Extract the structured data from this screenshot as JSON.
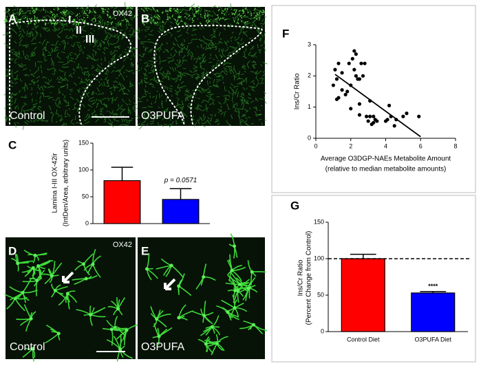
{
  "images": {
    "A": {
      "letter": "A",
      "stain": "OX42",
      "layers": [
        "I",
        "II",
        "III"
      ],
      "condition": "Control"
    },
    "B": {
      "letter": "B",
      "condition": "O3PUFA"
    },
    "D": {
      "letter": "D",
      "stain": "OX42",
      "condition": "Control"
    },
    "E": {
      "letter": "E",
      "condition": "O3PUFA"
    }
  },
  "chart_data": [
    {
      "type": "bar",
      "panel": "C",
      "ylabel": [
        "Lamina I-III OX-42ir",
        "(IntDen/Area, arbitrary units)"
      ],
      "categories": [
        null,
        null
      ],
      "values": [
        80,
        45
      ],
      "errors": [
        25,
        20
      ],
      "colors": [
        "#ff0000",
        "#0000ff"
      ],
      "annotation": "p = 0.0571",
      "ylim": [
        0,
        150
      ],
      "yticks": [
        0,
        50,
        100,
        150
      ]
    },
    {
      "type": "scatter",
      "panel": "F",
      "ylabel": "Ins/Cr Ratio",
      "xlabel": [
        "Average O3DGP-NAEs Metabolite Amount",
        "(relative to median metabolite amounts)"
      ],
      "x": [
        1.0,
        1.1,
        1.2,
        1.3,
        1.3,
        1.2,
        1.5,
        1.5,
        1.7,
        1.8,
        1.9,
        2.0,
        2.0,
        2.1,
        2.2,
        2.3,
        2.2,
        2.3,
        2.4,
        2.5,
        2.6,
        2.5,
        2.7,
        2.8,
        2.5,
        2.9,
        3.0,
        3.1,
        3.2,
        3.3,
        3.3,
        3.4,
        3.5,
        3.1,
        4.0,
        4.2,
        4.3,
        4.5,
        4.6,
        5.0,
        5.2,
        5.9,
        4.1
      ],
      "y": [
        1.7,
        2.2,
        1.9,
        2.4,
        1.3,
        1.25,
        1.55,
        2.1,
        1.4,
        1.5,
        2.4,
        1.7,
        0.95,
        2.55,
        2.8,
        2.7,
        2.2,
        2.0,
        1.9,
        1.9,
        2.4,
        1.1,
        2.0,
        2.4,
        0.75,
        0.7,
        0.55,
        0.7,
        0.45,
        0.5,
        0.7,
        0.6,
        0.55,
        1.2,
        0.55,
        1.05,
        0.7,
        0.4,
        0.6,
        0.7,
        0.8,
        0.7,
        0.6
      ],
      "color": "#000000",
      "fit": {
        "x": [
          1.1,
          6.0
        ],
        "y": [
          2.05,
          0.05
        ]
      },
      "xlim": [
        0,
        8
      ],
      "xticks": [
        0,
        2,
        4,
        6,
        8
      ],
      "ylim": [
        0,
        3
      ],
      "yticks": [
        0,
        1,
        2,
        3
      ]
    },
    {
      "type": "bar",
      "panel": "G",
      "ylabel": [
        "Ins/Cr Ratio",
        "(Percent Change from Control)"
      ],
      "categories": [
        "Control Diet",
        "O3PUFA Diet"
      ],
      "values": [
        100,
        53
      ],
      "errors": [
        6,
        2
      ],
      "colors": [
        "#ff0000",
        "#0000ff"
      ],
      "significance": [
        null,
        "****"
      ],
      "reference_line": 100,
      "ylim": [
        0,
        150
      ],
      "yticks": [
        0,
        50,
        100,
        150
      ]
    }
  ]
}
